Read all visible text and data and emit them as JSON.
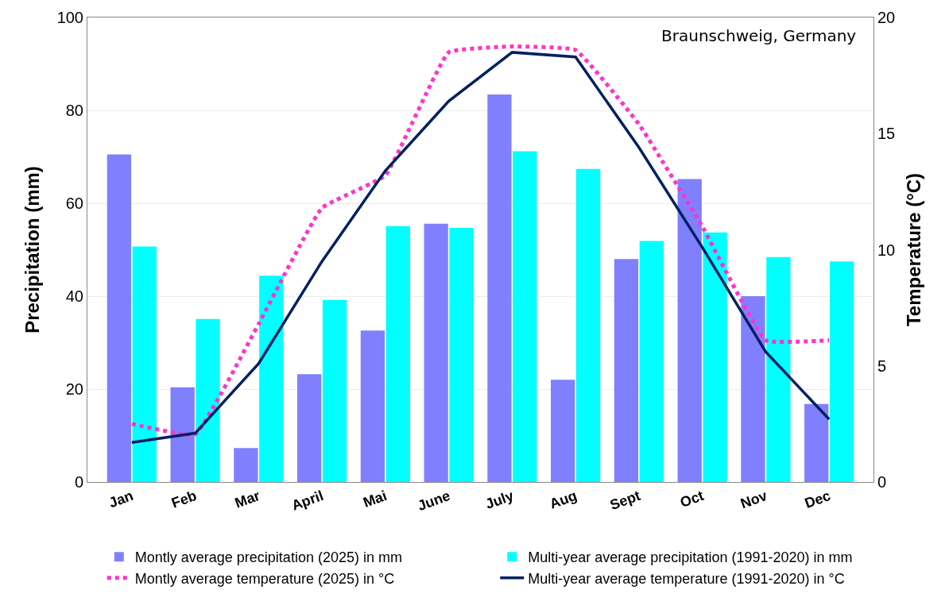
{
  "chart_data": {
    "type": "bar",
    "categories": [
      "Jan",
      "Feb",
      "Mar",
      "April",
      "Mai",
      "June",
      "July",
      "Aug",
      "Sept",
      "Oct",
      "Nov",
      "Dec"
    ],
    "series": [
      {
        "name": "Montly average precipitation (2025) in mm",
        "color": "#8080ff",
        "values": [
          70.5,
          20.4,
          7.3,
          23.2,
          32.6,
          55.6,
          83.4,
          22.0,
          48.0,
          65.2,
          40.0,
          16.8
        ]
      },
      {
        "name": "Multi-year average precipitation (1991-2020) in mm",
        "color": "#00ffff",
        "values": [
          50.7,
          35.1,
          44.4,
          39.2,
          55.1,
          54.7,
          71.2,
          67.4,
          51.9,
          53.7,
          48.4,
          47.5
        ]
      },
      {
        "name": "Montly average temperature (2025) in °C",
        "type": "line",
        "axis": "y2",
        "color": "#ff33cc",
        "line_style": "dotted",
        "values": [
          2.5,
          2.05,
          6.8,
          11.8,
          13.2,
          18.5,
          18.75,
          18.6,
          15.4,
          11.0,
          6.1,
          6.1
        ]
      },
      {
        "name": "Multi-year average temperature (1991-2020) in °C",
        "type": "line",
        "axis": "y2",
        "color": "#002060",
        "line_style": "solid",
        "values": [
          1.7,
          2.1,
          5.1,
          9.5,
          13.4,
          16.4,
          18.5,
          18.3,
          14.4,
          10.1,
          5.6,
          2.7
        ]
      }
    ],
    "ylabel": "Precipitation (mm)",
    "y2label": "Temperature (°C)",
    "ylim": [
      0,
      100
    ],
    "yticks": [
      0,
      20,
      40,
      60,
      80,
      100
    ],
    "y2lim": [
      0,
      20
    ],
    "y2ticks": [
      0,
      5,
      10,
      15,
      20
    ],
    "annotations": [
      "Braunschweig, Germany"
    ],
    "grid": "y",
    "legend": "bottom"
  }
}
